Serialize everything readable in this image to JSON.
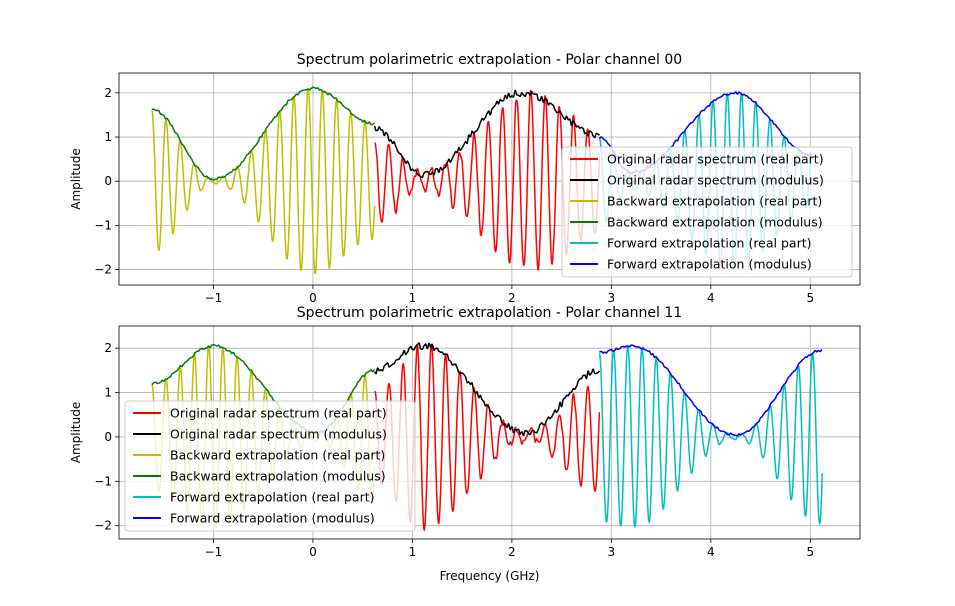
{
  "chart_data": [
    {
      "type": "line",
      "title": "Spectrum polarimetric extrapolation - Polar channel 00",
      "xlabel": "",
      "ylabel": "Amplitude",
      "xlim": [
        -1.95,
        5.5
      ],
      "ylim": [
        -2.35,
        2.45
      ],
      "xticks": [
        -1,
        0,
        1,
        2,
        3,
        4,
        5
      ],
      "yticks": [
        -2,
        -1,
        0,
        1,
        2
      ],
      "grid": true,
      "legend_position": "lower-right",
      "freq_step_ghz": 0.01,
      "series": [
        {
          "name": "Original radar spectrum (real part)",
          "color": "#ff0000",
          "x_start": 0.62,
          "x_end": 2.88,
          "cycles_per_ghz": 7,
          "envelope_anchors": [
            [
              0.62,
              0.95
            ],
            [
              1.1,
              0.2
            ],
            [
              2.2,
              2.0
            ],
            [
              2.88,
              1.2
            ]
          ],
          "noise": 0.1
        },
        {
          "name": "Original radar spectrum (modulus)",
          "color": "#000000",
          "x_start": 0.62,
          "x_end": 2.88,
          "envelope_anchors": [
            [
              0.62,
              1.2
            ],
            [
              1.1,
              0.15
            ],
            [
              2.1,
              2.0
            ],
            [
              2.88,
              1.05
            ]
          ],
          "noise": 0.08
        },
        {
          "name": "Backward extrapolation (real part)",
          "color": "#bfbf00",
          "x_start": -1.62,
          "x_end": 0.62,
          "cycles_per_ghz": 7,
          "envelope_anchors": [
            [
              -1.62,
              1.6
            ],
            [
              -1.0,
              0.05
            ],
            [
              0.0,
              2.1
            ],
            [
              0.62,
              1.3
            ]
          ],
          "noise": 0.02
        },
        {
          "name": "Backward extrapolation (modulus)",
          "color": "#008000",
          "x_start": -1.62,
          "x_end": 0.62,
          "envelope_anchors": [
            [
              -1.62,
              1.62
            ],
            [
              -1.0,
              0.05
            ],
            [
              0.0,
              2.1
            ],
            [
              0.62,
              1.3
            ]
          ],
          "noise": 0.03
        },
        {
          "name": "Forward extrapolation (real part)",
          "color": "#00bfbf",
          "x_start": 2.88,
          "x_end": 5.02,
          "cycles_per_ghz": 7,
          "envelope_anchors": [
            [
              2.88,
              1.0
            ],
            [
              3.2,
              0.2
            ],
            [
              4.25,
              2.0
            ],
            [
              5.02,
              0.6
            ]
          ],
          "noise": 0.02
        },
        {
          "name": "Forward extrapolation (modulus)",
          "color": "#0000ff",
          "x_start": 2.88,
          "x_end": 5.02,
          "envelope_anchors": [
            [
              2.88,
              1.0
            ],
            [
              3.2,
              0.2
            ],
            [
              4.25,
              2.0
            ],
            [
              5.02,
              0.6
            ]
          ],
          "noise": 0.03
        }
      ]
    },
    {
      "type": "line",
      "title": "Spectrum polarimetric extrapolation - Polar channel 11",
      "xlabel": "Frequency (GHz)",
      "ylabel": "Amplitude",
      "xlim": [
        -1.95,
        5.5
      ],
      "ylim": [
        -2.3,
        2.5
      ],
      "xticks": [
        -1,
        0,
        1,
        2,
        3,
        4,
        5
      ],
      "yticks": [
        -2,
        -1,
        0,
        1,
        2
      ],
      "grid": true,
      "legend_position": "lower-left",
      "freq_step_ghz": 0.01,
      "series": [
        {
          "name": "Original radar spectrum (real part)",
          "color": "#ff0000",
          "x_start": 0.62,
          "x_end": 2.88,
          "cycles_per_ghz": 7,
          "envelope_anchors": [
            [
              0.62,
              1.0
            ],
            [
              1.1,
              2.05
            ],
            [
              2.15,
              0.1
            ],
            [
              2.88,
              1.25
            ]
          ],
          "noise": 0.1
        },
        {
          "name": "Original radar spectrum (modulus)",
          "color": "#000000",
          "x_start": 0.62,
          "x_end": 2.88,
          "envelope_anchors": [
            [
              0.62,
              1.5
            ],
            [
              1.1,
              2.05
            ],
            [
              2.15,
              0.1
            ],
            [
              2.88,
              1.5
            ]
          ],
          "noise": 0.08
        },
        {
          "name": "Backward extrapolation (real part)",
          "color": "#bfbf00",
          "x_start": -1.62,
          "x_end": 0.62,
          "cycles_per_ghz": 7,
          "envelope_anchors": [
            [
              -1.62,
              1.2
            ],
            [
              -1.0,
              2.05
            ],
            [
              0.05,
              0.1
            ],
            [
              0.62,
              1.5
            ]
          ],
          "noise": 0.02
        },
        {
          "name": "Backward extrapolation (modulus)",
          "color": "#008000",
          "x_start": -1.62,
          "x_end": 0.62,
          "envelope_anchors": [
            [
              -1.62,
              1.2
            ],
            [
              -1.0,
              2.05
            ],
            [
              0.05,
              0.1
            ],
            [
              0.62,
              1.5
            ]
          ],
          "noise": 0.03
        },
        {
          "name": "Forward extrapolation (real part)",
          "color": "#00bfbf",
          "x_start": 2.88,
          "x_end": 5.12,
          "cycles_per_ghz": 7,
          "envelope_anchors": [
            [
              2.88,
              1.9
            ],
            [
              3.2,
              2.05
            ],
            [
              4.25,
              0.05
            ],
            [
              5.12,
              1.95
            ]
          ],
          "noise": 0.02
        },
        {
          "name": "Forward extrapolation (modulus)",
          "color": "#0000ff",
          "x_start": 2.88,
          "x_end": 5.12,
          "envelope_anchors": [
            [
              2.88,
              1.9
            ],
            [
              3.2,
              2.05
            ],
            [
              4.25,
              0.05
            ],
            [
              5.12,
              1.95
            ]
          ],
          "noise": 0.03
        }
      ]
    }
  ]
}
